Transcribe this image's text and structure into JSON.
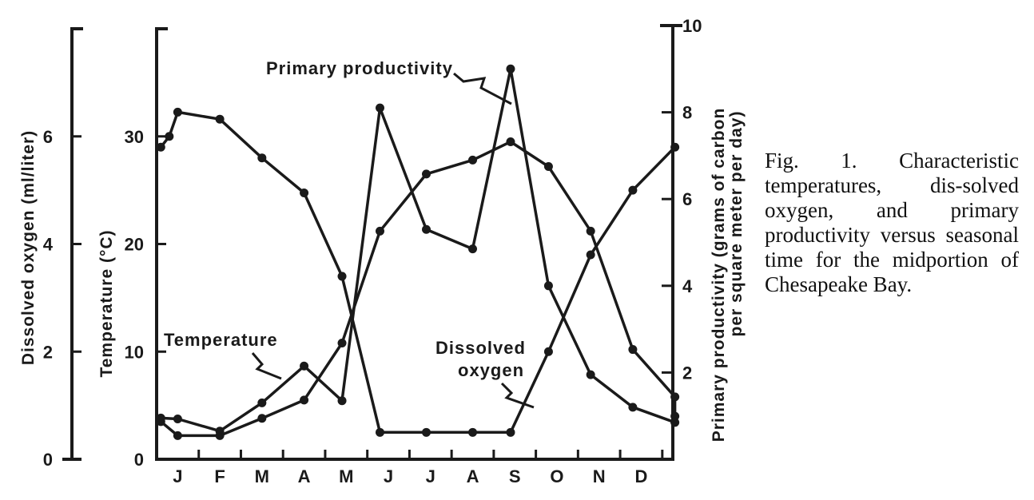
{
  "caption": "Fig. 1. Characteristic temperatures, dis-solved oxygen, and primary productivity versus seasonal time for the midportion of Chesapeake Bay.",
  "chart_data": {
    "type": "line",
    "title": "",
    "xlabel": "",
    "x_tick_labels": [
      "J",
      "F",
      "M",
      "A",
      "M",
      "J",
      "J",
      "A",
      "S",
      "O",
      "N",
      "D"
    ],
    "x_range_months": [
      0.5,
      12.75
    ],
    "axes": {
      "dissolved_oxygen": {
        "label": "Dissolved oxygen (ml/liter)",
        "ylim": [
          0,
          8
        ],
        "ticks": [
          0,
          2,
          4,
          6
        ]
      },
      "temperature": {
        "label": "Temperature (°C)",
        "ylim": [
          0,
          40
        ],
        "ticks": [
          0,
          10,
          20,
          30
        ]
      },
      "primary_productivity": {
        "label": "Primary productivity (grams of carbon per square meter per day)",
        "ylim": [
          0,
          10
        ],
        "ticks": [
          2,
          4,
          6,
          8,
          10
        ]
      }
    },
    "series": [
      {
        "name": "Temperature",
        "axis": "temperature",
        "points": [
          [
            0.6,
            3.5
          ],
          [
            1.0,
            2.2
          ],
          [
            2.0,
            2.2
          ],
          [
            3.0,
            3.8
          ],
          [
            4.0,
            5.5
          ],
          [
            4.9,
            10.8
          ],
          [
            5.8,
            21.2
          ],
          [
            6.9,
            26.5
          ],
          [
            8.0,
            27.8
          ],
          [
            8.9,
            29.5
          ],
          [
            9.8,
            27.2
          ],
          [
            10.8,
            21.2
          ],
          [
            11.8,
            10.2
          ],
          [
            12.8,
            5.8
          ],
          [
            12.8,
            4.0
          ]
        ]
      },
      {
        "name": "Dissolved oxygen",
        "axis": "dissolved_oxygen",
        "points": [
          [
            0.6,
            5.8
          ],
          [
            0.8,
            6.0
          ],
          [
            1.0,
            6.45
          ],
          [
            2.0,
            6.32
          ],
          [
            3.0,
            5.6
          ],
          [
            4.0,
            4.95
          ],
          [
            4.9,
            3.4
          ],
          [
            5.8,
            0.5
          ],
          [
            6.9,
            0.5
          ],
          [
            8.0,
            0.5
          ],
          [
            8.9,
            0.5
          ],
          [
            9.8,
            2.0
          ],
          [
            10.8,
            3.8
          ],
          [
            11.8,
            5.0
          ],
          [
            12.8,
            5.8
          ]
        ]
      },
      {
        "name": "Primary productivity",
        "axis": "primary_productivity",
        "points": [
          [
            0.6,
            0.95
          ],
          [
            1.0,
            0.93
          ],
          [
            2.0,
            0.65
          ],
          [
            3.0,
            1.3
          ],
          [
            4.0,
            2.15
          ],
          [
            4.9,
            1.35
          ],
          [
            5.8,
            8.1
          ],
          [
            6.9,
            5.3
          ],
          [
            8.0,
            4.85
          ],
          [
            8.9,
            9.0
          ],
          [
            9.8,
            4.0
          ],
          [
            10.8,
            1.95
          ],
          [
            11.8,
            1.2
          ],
          [
            12.8,
            0.85
          ]
        ]
      }
    ],
    "annotations": [
      {
        "text": "Primary productivity",
        "series": "Primary productivity"
      },
      {
        "text": "Temperature",
        "series": "Temperature"
      },
      {
        "text": "Dissolved",
        "series": "Dissolved oxygen"
      },
      {
        "text": "oxygen",
        "series": "Dissolved oxygen"
      }
    ]
  }
}
